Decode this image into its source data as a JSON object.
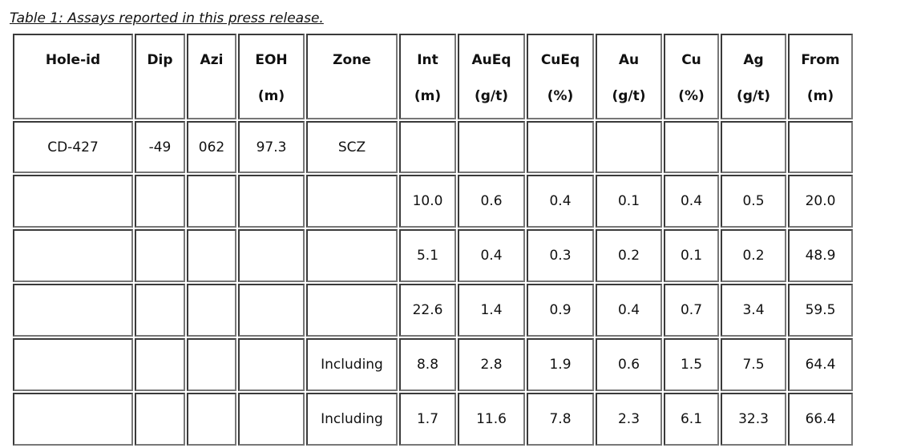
{
  "caption": "Table 1: Assays reported in this press release.",
  "table": {
    "header": [
      [
        "Hole-id"
      ],
      [
        "Dip"
      ],
      [
        "Azi"
      ],
      [
        "EOH",
        "(m)"
      ],
      [
        "Zone"
      ],
      [
        "Int",
        "(m)"
      ],
      [
        "AuEq",
        "(g/t)"
      ],
      [
        "CuEq",
        "(%)"
      ],
      [
        "Au",
        "(g/t)"
      ],
      [
        "Cu",
        "(%)"
      ],
      [
        "Ag",
        "(g/t)"
      ],
      [
        "From",
        "(m)"
      ]
    ],
    "rows": [
      [
        "CD-427",
        "-49",
        "062",
        "97.3",
        "SCZ",
        null,
        null,
        null,
        null,
        null,
        null,
        null
      ],
      [
        null,
        null,
        null,
        null,
        null,
        "10.0",
        "0.6",
        "0.4",
        "0.1",
        "0.4",
        "0.5",
        "20.0"
      ],
      [
        null,
        null,
        null,
        null,
        null,
        "5.1",
        "0.4",
        "0.3",
        "0.2",
        "0.1",
        "0.2",
        "48.9"
      ],
      [
        null,
        null,
        null,
        null,
        null,
        "22.6",
        "1.4",
        "0.9",
        "0.4",
        "0.7",
        "3.4",
        "59.5"
      ],
      [
        null,
        null,
        null,
        null,
        "Including",
        "8.8",
        "2.8",
        "1.9",
        "0.6",
        "1.5",
        "7.5",
        "64.4"
      ],
      [
        null,
        null,
        null,
        null,
        "Including",
        "1.7",
        "11.6",
        "7.8",
        "2.3",
        "6.1",
        "32.3",
        "66.4"
      ]
    ]
  }
}
